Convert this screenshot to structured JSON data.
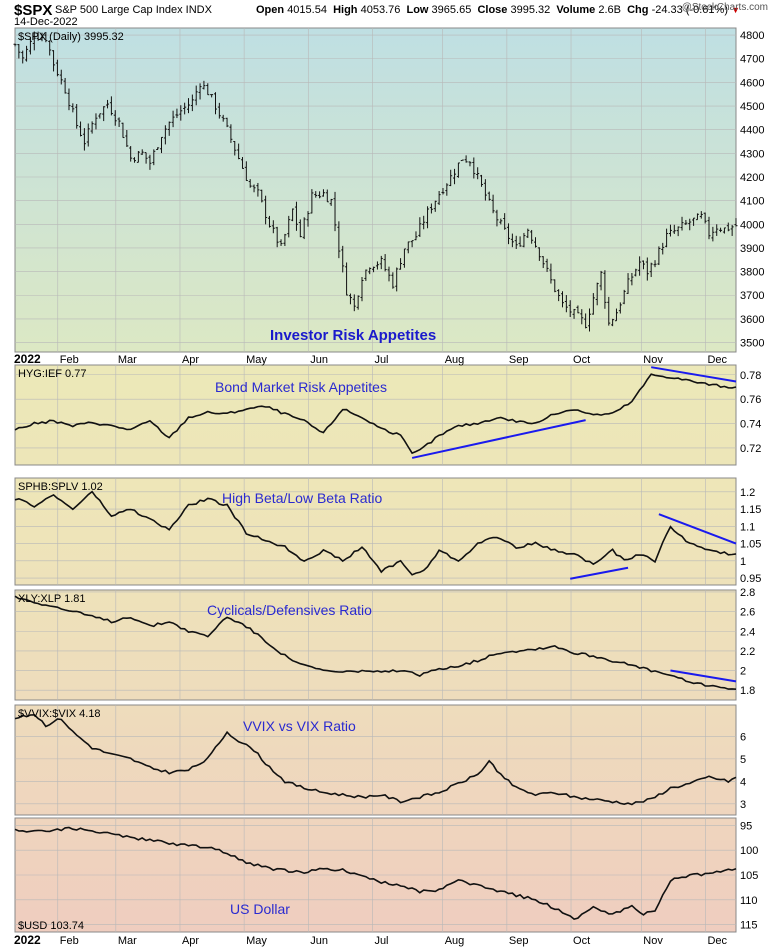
{
  "header": {
    "symbol": "$SPX",
    "name": "S&P 500 Large Cap Index  INDX",
    "date": "14-Dec-2022",
    "open_label": "Open",
    "open": "4015.54",
    "high_label": "High",
    "high": "4053.76",
    "low_label": "Low",
    "low": "3965.65",
    "close_label": "Close",
    "close": "3995.32",
    "volume_label": "Volume",
    "volume": "2.6B",
    "chg_label": "Chg",
    "chg": "-24.33 (-0.61%)",
    "source": "@StockCharts.com"
  },
  "x_axis": {
    "year_label": "2022",
    "months": [
      "Feb",
      "Mar",
      "Apr",
      "May",
      "Jun",
      "Jul",
      "Aug",
      "Sep",
      "Oct",
      "Nov",
      "Dec"
    ]
  },
  "chart_data": [
    {
      "type": "ohlc",
      "legend": "$SPX (Daily) 3995.32",
      "annotation": "Investor Risk Appetites",
      "y_ticks": [
        3500,
        3600,
        3700,
        3800,
        3900,
        4000,
        4100,
        4200,
        4300,
        4400,
        4500,
        4600,
        4700,
        4800
      ],
      "ylim": [
        3460,
        4830
      ],
      "close_points": [
        [
          0,
          4760
        ],
        [
          2,
          4700
        ],
        [
          5,
          4800
        ],
        [
          8,
          4790
        ],
        [
          10,
          4680
        ],
        [
          13,
          4570
        ],
        [
          16,
          4420
        ],
        [
          18,
          4350
        ],
        [
          21,
          4460
        ],
        [
          24,
          4510
        ],
        [
          27,
          4430
        ],
        [
          30,
          4280
        ],
        [
          33,
          4300
        ],
        [
          35,
          4260
        ],
        [
          38,
          4380
        ],
        [
          40,
          4430
        ],
        [
          43,
          4480
        ],
        [
          46,
          4520
        ],
        [
          48,
          4600
        ],
        [
          50,
          4560
        ],
        [
          52,
          4500
        ],
        [
          55,
          4400
        ],
        [
          58,
          4280
        ],
        [
          61,
          4160
        ],
        [
          63,
          4130
        ],
        [
          66,
          4000
        ],
        [
          69,
          3900
        ],
        [
          72,
          4060
        ],
        [
          74,
          3950
        ],
        [
          77,
          4120
        ],
        [
          80,
          4130
        ],
        [
          82,
          4100
        ],
        [
          84,
          3900
        ],
        [
          86,
          3720
        ],
        [
          88,
          3650
        ],
        [
          90,
          3780
        ],
        [
          92,
          3830
        ],
        [
          95,
          3840
        ],
        [
          98,
          3750
        ],
        [
          101,
          3900
        ],
        [
          104,
          3950
        ],
        [
          107,
          4050
        ],
        [
          110,
          4130
        ],
        [
          113,
          4200
        ],
        [
          116,
          4280
        ],
        [
          118,
          4270
        ],
        [
          121,
          4160
        ],
        [
          124,
          4050
        ],
        [
          127,
          3970
        ],
        [
          130,
          3900
        ],
        [
          133,
          3980
        ],
        [
          136,
          3880
        ],
        [
          139,
          3760
        ],
        [
          142,
          3660
        ],
        [
          145,
          3620
        ],
        [
          148,
          3580
        ],
        [
          150,
          3690
        ],
        [
          152,
          3790
        ],
        [
          154,
          3580
        ],
        [
          156,
          3630
        ],
        [
          159,
          3750
        ],
        [
          162,
          3840
        ],
        [
          164,
          3800
        ],
        [
          166,
          3850
        ],
        [
          169,
          3950
        ],
        [
          172,
          3980
        ],
        [
          175,
          4010
        ],
        [
          178,
          4030
        ],
        [
          180,
          3960
        ],
        [
          182,
          3990
        ],
        [
          184,
          3980
        ],
        [
          187,
          3995
        ]
      ]
    },
    {
      "type": "line",
      "legend": "HYG:IEF 0.77",
      "annotation": "Bond Market Risk Appetites",
      "y_ticks": [
        0.72,
        0.74,
        0.76,
        0.78
      ],
      "ylim": [
        0.706,
        0.788
      ],
      "points": [
        [
          0,
          0.735
        ],
        [
          5,
          0.74
        ],
        [
          10,
          0.742
        ],
        [
          15,
          0.738
        ],
        [
          20,
          0.741
        ],
        [
          25,
          0.738
        ],
        [
          30,
          0.735
        ],
        [
          35,
          0.742
        ],
        [
          40,
          0.728
        ],
        [
          45,
          0.745
        ],
        [
          50,
          0.749
        ],
        [
          55,
          0.748
        ],
        [
          60,
          0.752
        ],
        [
          65,
          0.754
        ],
        [
          70,
          0.748
        ],
        [
          75,
          0.742
        ],
        [
          80,
          0.732
        ],
        [
          85,
          0.752
        ],
        [
          90,
          0.745
        ],
        [
          95,
          0.736
        ],
        [
          100,
          0.73
        ],
        [
          103,
          0.715
        ],
        [
          105,
          0.718
        ],
        [
          110,
          0.73
        ],
        [
          115,
          0.738
        ],
        [
          120,
          0.74
        ],
        [
          125,
          0.745
        ],
        [
          130,
          0.742
        ],
        [
          135,
          0.74
        ],
        [
          140,
          0.748
        ],
        [
          145,
          0.752
        ],
        [
          150,
          0.747
        ],
        [
          155,
          0.748
        ],
        [
          160,
          0.758
        ],
        [
          165,
          0.78
        ],
        [
          170,
          0.778
        ],
        [
          175,
          0.775
        ],
        [
          180,
          0.772
        ],
        [
          185,
          0.77
        ],
        [
          187,
          0.77
        ]
      ]
    },
    {
      "type": "line",
      "legend": "SPHB:SPLV 1.02",
      "annotation": "High Beta/Low Beta Ratio",
      "y_ticks": [
        0.95,
        1.0,
        1.05,
        1.1,
        1.15,
        1.2
      ],
      "ylim": [
        0.93,
        1.24
      ],
      "points": [
        [
          0,
          1.18
        ],
        [
          5,
          1.16
        ],
        [
          10,
          1.19
        ],
        [
          15,
          1.15
        ],
        [
          20,
          1.2
        ],
        [
          25,
          1.13
        ],
        [
          30,
          1.15
        ],
        [
          35,
          1.12
        ],
        [
          40,
          1.09
        ],
        [
          45,
          1.16
        ],
        [
          50,
          1.18
        ],
        [
          55,
          1.16
        ],
        [
          60,
          1.08
        ],
        [
          65,
          1.06
        ],
        [
          70,
          1.04
        ],
        [
          75,
          1.0
        ],
        [
          80,
          1.03
        ],
        [
          85,
          1.0
        ],
        [
          90,
          1.04
        ],
        [
          95,
          0.97
        ],
        [
          100,
          1.0
        ],
        [
          103,
          0.96
        ],
        [
          106,
          0.97
        ],
        [
          110,
          1.03
        ],
        [
          115,
          1.0
        ],
        [
          120,
          1.05
        ],
        [
          125,
          1.07
        ],
        [
          130,
          1.04
        ],
        [
          135,
          1.05
        ],
        [
          140,
          1.03
        ],
        [
          145,
          1.02
        ],
        [
          150,
          0.99
        ],
        [
          155,
          1.03
        ],
        [
          158,
          1.0
        ],
        [
          162,
          1.02
        ],
        [
          166,
          1.0
        ],
        [
          170,
          1.1
        ],
        [
          175,
          1.05
        ],
        [
          180,
          1.03
        ],
        [
          185,
          1.02
        ],
        [
          187,
          1.02
        ]
      ]
    },
    {
      "type": "line",
      "legend": "XLY:XLP 1.81",
      "annotation": "Cyclicals/Defensives Ratio",
      "y_ticks": [
        1.8,
        2.0,
        2.2,
        2.4,
        2.6,
        2.8
      ],
      "ylim": [
        1.7,
        2.82
      ],
      "points": [
        [
          0,
          2.75
        ],
        [
          5,
          2.7
        ],
        [
          10,
          2.65
        ],
        [
          15,
          2.6
        ],
        [
          20,
          2.55
        ],
        [
          25,
          2.5
        ],
        [
          30,
          2.55
        ],
        [
          35,
          2.45
        ],
        [
          40,
          2.5
        ],
        [
          45,
          2.4
        ],
        [
          50,
          2.35
        ],
        [
          55,
          2.55
        ],
        [
          60,
          2.45
        ],
        [
          65,
          2.3
        ],
        [
          70,
          2.15
        ],
        [
          75,
          2.05
        ],
        [
          80,
          2.0
        ],
        [
          85,
          1.98
        ],
        [
          90,
          2.0
        ],
        [
          95,
          1.98
        ],
        [
          100,
          2.0
        ],
        [
          105,
          1.95
        ],
        [
          110,
          2.02
        ],
        [
          115,
          2.05
        ],
        [
          120,
          2.1
        ],
        [
          125,
          2.18
        ],
        [
          130,
          2.2
        ],
        [
          135,
          2.22
        ],
        [
          140,
          2.25
        ],
        [
          145,
          2.18
        ],
        [
          150,
          2.15
        ],
        [
          155,
          2.1
        ],
        [
          160,
          2.05
        ],
        [
          165,
          2.0
        ],
        [
          170,
          1.95
        ],
        [
          175,
          1.88
        ],
        [
          180,
          1.85
        ],
        [
          185,
          1.82
        ],
        [
          187,
          1.81
        ]
      ]
    },
    {
      "type": "line",
      "legend": "$VVIX:$VIX 4.18",
      "annotation": "VVIX vs VIX Ratio",
      "y_ticks": [
        3,
        4,
        5,
        6
      ],
      "ylim": [
        2.5,
        7.4
      ],
      "points": [
        [
          0,
          6.8
        ],
        [
          5,
          7.0
        ],
        [
          8,
          6.5
        ],
        [
          12,
          6.8
        ],
        [
          15,
          6.2
        ],
        [
          20,
          5.5
        ],
        [
          25,
          5.2
        ],
        [
          30,
          5.0
        ],
        [
          35,
          4.6
        ],
        [
          40,
          4.4
        ],
        [
          45,
          4.5
        ],
        [
          50,
          5.0
        ],
        [
          55,
          6.2
        ],
        [
          58,
          5.8
        ],
        [
          62,
          5.4
        ],
        [
          65,
          4.8
        ],
        [
          70,
          4.0
        ],
        [
          75,
          3.7
        ],
        [
          80,
          3.5
        ],
        [
          85,
          3.4
        ],
        [
          90,
          3.3
        ],
        [
          95,
          3.4
        ],
        [
          100,
          3.1
        ],
        [
          105,
          3.3
        ],
        [
          110,
          3.5
        ],
        [
          115,
          3.9
        ],
        [
          120,
          4.3
        ],
        [
          123,
          4.9
        ],
        [
          126,
          4.3
        ],
        [
          130,
          3.7
        ],
        [
          135,
          3.4
        ],
        [
          140,
          3.5
        ],
        [
          145,
          3.3
        ],
        [
          150,
          3.2
        ],
        [
          155,
          3.1
        ],
        [
          160,
          3.0
        ],
        [
          165,
          3.2
        ],
        [
          170,
          3.7
        ],
        [
          175,
          3.9
        ],
        [
          180,
          4.2
        ],
        [
          185,
          4.0
        ],
        [
          187,
          4.18
        ]
      ]
    },
    {
      "type": "line",
      "legend": "$USD 103.74",
      "annotation": "US Dollar",
      "y_ticks": [
        95,
        100,
        105,
        110,
        115
      ],
      "ylim": [
        93.5,
        116.5
      ],
      "invert_y": true,
      "points": [
        [
          0,
          96
        ],
        [
          5,
          96.2
        ],
        [
          10,
          96
        ],
        [
          15,
          95.5
        ],
        [
          20,
          96.2
        ],
        [
          25,
          96.7
        ],
        [
          30,
          97.4
        ],
        [
          35,
          98
        ],
        [
          40,
          98.6
        ],
        [
          45,
          99
        ],
        [
          50,
          99.4
        ],
        [
          55,
          100.6
        ],
        [
          60,
          102.5
        ],
        [
          65,
          103.5
        ],
        [
          70,
          104.1
        ],
        [
          75,
          104.5
        ],
        [
          80,
          103.8
        ],
        [
          85,
          104
        ],
        [
          90,
          105
        ],
        [
          95,
          106.5
        ],
        [
          100,
          107
        ],
        [
          105,
          108.4
        ],
        [
          110,
          108
        ],
        [
          115,
          106
        ],
        [
          120,
          107.2
        ],
        [
          125,
          108.1
        ],
        [
          130,
          109.1
        ],
        [
          135,
          110
        ],
        [
          140,
          111.7
        ],
        [
          143,
          113
        ],
        [
          145,
          114
        ],
        [
          150,
          111.5
        ],
        [
          155,
          113
        ],
        [
          158,
          112
        ],
        [
          160,
          111
        ],
        [
          163,
          113.1
        ],
        [
          166,
          112
        ],
        [
          170,
          106
        ],
        [
          175,
          105
        ],
        [
          180,
          104.8
        ],
        [
          185,
          104
        ],
        [
          187,
          103.74
        ]
      ]
    }
  ]
}
